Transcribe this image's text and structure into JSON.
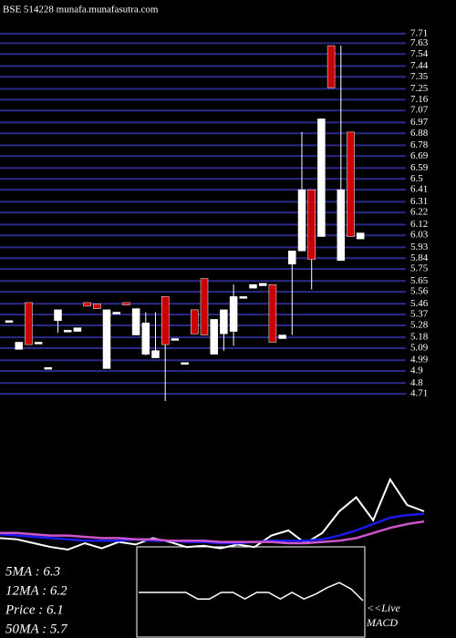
{
  "chart_data": {
    "type": "candlestick",
    "title": "BSE 514228 munafa.munafasutra.com",
    "up_color": "#ffffff",
    "down_color": "#cc0000",
    "grid_color": "#2a2a8a",
    "ylim": [
      4.65,
      7.99
    ],
    "yticks": [
      7.71,
      7.63,
      7.54,
      7.44,
      7.35,
      7.25,
      7.16,
      7.07,
      6.97,
      6.88,
      6.78,
      6.69,
      6.59,
      6.5,
      6.41,
      6.31,
      6.22,
      6.12,
      6.03,
      5.93,
      5.84,
      5.75,
      5.65,
      5.56,
      5.46,
      5.37,
      5.28,
      5.18,
      5.09,
      4.99,
      4.9,
      4.8,
      4.71
    ],
    "open": [
      5.32,
      5.08,
      5.47,
      5.14,
      4.93,
      5.32,
      5.24,
      5.23,
      5.47,
      5.46,
      4.92,
      5.39,
      5.47,
      5.2,
      5.04,
      5.01,
      5.52,
      5.17,
      4.97,
      5.41,
      5.67,
      5.04,
      5.21,
      5.23,
      5.52,
      5.59,
      5.61,
      5.62,
      5.17,
      5.79,
      5.9,
      6.41,
      6.02,
      7.61,
      5.82,
      6.89,
      6.0
    ],
    "high": [
      5.32,
      5.14,
      5.47,
      5.14,
      4.93,
      5.41,
      5.24,
      5.26,
      5.47,
      5.46,
      5.41,
      5.39,
      5.47,
      5.42,
      5.39,
      5.39,
      5.52,
      5.17,
      4.97,
      5.41,
      5.67,
      5.33,
      5.41,
      5.62,
      5.52,
      5.62,
      5.63,
      5.62,
      5.2,
      5.9,
      6.89,
      6.41,
      7.0,
      7.61,
      7.61,
      6.89,
      6.05
    ],
    "low": [
      5.32,
      5.08,
      5.12,
      5.14,
      4.93,
      5.22,
      5.24,
      5.23,
      5.44,
      5.42,
      4.92,
      5.39,
      5.45,
      5.2,
      5.03,
      5.01,
      4.65,
      5.17,
      4.97,
      5.21,
      5.2,
      5.04,
      5.07,
      5.11,
      5.52,
      5.59,
      5.61,
      5.14,
      5.17,
      5.2,
      5.9,
      5.58,
      6.02,
      7.26,
      5.82,
      6.02,
      6.0
    ],
    "close": [
      5.32,
      5.14,
      5.12,
      5.14,
      4.93,
      5.41,
      5.24,
      5.26,
      5.44,
      5.42,
      5.41,
      5.39,
      5.45,
      5.42,
      5.3,
      5.07,
      5.12,
      5.17,
      4.97,
      5.21,
      5.2,
      5.33,
      5.41,
      5.52,
      5.52,
      5.62,
      5.63,
      5.14,
      5.2,
      5.9,
      6.41,
      5.83,
      7.0,
      7.26,
      6.41,
      6.02,
      6.05
    ],
    "indicator": {
      "ylim": [
        0,
        100
      ],
      "series": [
        {
          "color": "#ffffff",
          "values": [
            14,
            13,
            10,
            7,
            5,
            10,
            6,
            11,
            9,
            14,
            11,
            7,
            8,
            6,
            9,
            7,
            16,
            20,
            10,
            18,
            35,
            46,
            28,
            60,
            40,
            35
          ]
        },
        {
          "color": "#1a1aee",
          "values": [
            17,
            16,
            15,
            14,
            13,
            12,
            12,
            12,
            13,
            12,
            12,
            11,
            11,
            10,
            10,
            11,
            12,
            12,
            12,
            13,
            16,
            20,
            25,
            30,
            32,
            33
          ]
        },
        {
          "color": "#cc55cc",
          "values": [
            18,
            18,
            17,
            16,
            16,
            15,
            14,
            14,
            13,
            13,
            12,
            12,
            12,
            11,
            11,
            11,
            11,
            10,
            10,
            11,
            12,
            14,
            18,
            22,
            25,
            27
          ]
        }
      ]
    },
    "macd": {
      "ylim": [
        0,
        100
      ],
      "color": "#ffffff",
      "values": [
        50,
        50,
        50,
        50,
        50,
        42,
        42,
        50,
        50,
        42,
        50,
        50,
        42,
        50,
        42,
        48,
        56,
        62,
        54,
        40
      ]
    },
    "stats": [
      "5MA : 6.3",
      "12MA : 6.2",
      "Price  : 6.1",
      "50MA : 5.7"
    ],
    "live": "<<Live",
    "macd_label": "MACD"
  }
}
